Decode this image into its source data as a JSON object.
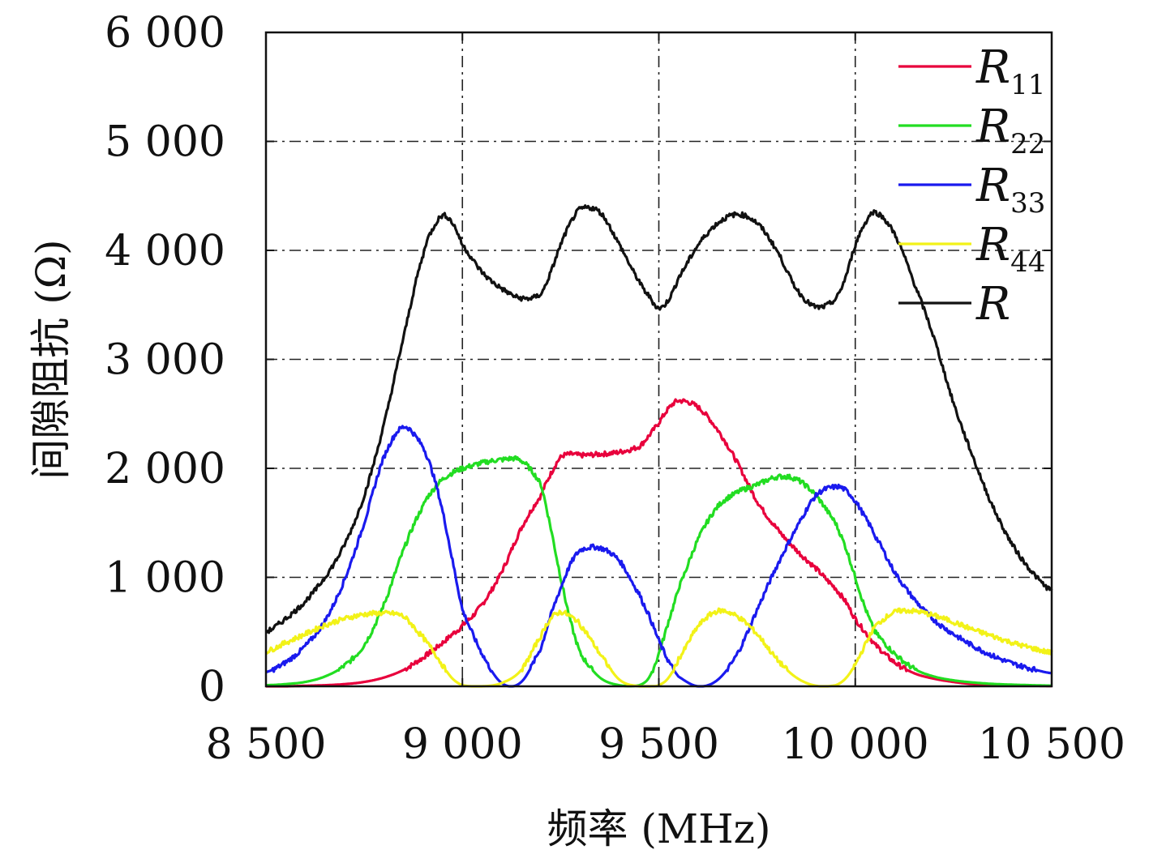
{
  "chart_data": {
    "type": "line",
    "xlabel": "频率 (MHz)",
    "ylabel": "间隙阻抗 (Ω)",
    "xlim": [
      8500,
      10500
    ],
    "ylim": [
      0,
      6000
    ],
    "x_ticks": [
      8500,
      9000,
      9500,
      10000,
      10500
    ],
    "x_tick_labels": [
      "8 500",
      "9 000",
      "9 500",
      "10 000",
      "10 500"
    ],
    "y_ticks": [
      0,
      1000,
      2000,
      3000,
      4000,
      5000,
      6000
    ],
    "y_tick_labels": [
      "0",
      "1 000",
      "2 000",
      "3 000",
      "4 000",
      "5 000",
      "6 000"
    ],
    "grid": true,
    "legend_position": "top-right",
    "x": [
      8500,
      8550,
      8600,
      8650,
      8700,
      8750,
      8800,
      8850,
      8900,
      8925,
      8950,
      8975,
      9000,
      9050,
      9100,
      9150,
      9200,
      9225,
      9250,
      9275,
      9300,
      9350,
      9400,
      9450,
      9475,
      9500,
      9525,
      9550,
      9600,
      9650,
      9700,
      9750,
      9800,
      9850,
      9900,
      9950,
      9975,
      10000,
      10025,
      10050,
      10100,
      10150,
      10200,
      10250,
      10300,
      10350,
      10400,
      10450,
      10500
    ],
    "series": [
      {
        "name": "R",
        "name_sub": "11",
        "color": "#e8003c",
        "values": [
          0,
          0,
          5,
          10,
          20,
          40,
          80,
          150,
          260,
          330,
          400,
          480,
          560,
          750,
          1050,
          1450,
          1750,
          1950,
          2100,
          2130,
          2120,
          2130,
          2150,
          2200,
          2300,
          2420,
          2550,
          2620,
          2560,
          2350,
          2050,
          1700,
          1450,
          1250,
          1080,
          900,
          780,
          620,
          500,
          380,
          220,
          120,
          70,
          40,
          20,
          12,
          8,
          5,
          3
        ]
      },
      {
        "name": "R",
        "name_sub": "22",
        "color": "#22dd22",
        "values": [
          10,
          20,
          40,
          90,
          190,
          380,
          750,
          1250,
          1650,
          1800,
          1900,
          1960,
          2000,
          2050,
          2080,
          2070,
          1850,
          1450,
          1000,
          600,
          300,
          80,
          10,
          10,
          80,
          300,
          600,
          900,
          1350,
          1650,
          1780,
          1850,
          1920,
          1900,
          1750,
          1500,
          1280,
          1000,
          720,
          500,
          300,
          160,
          90,
          55,
          35,
          22,
          15,
          10,
          6
        ]
      },
      {
        "name": "R",
        "name_sub": "33",
        "color": "#1a1aee",
        "values": [
          130,
          220,
          370,
          600,
          980,
          1500,
          2100,
          2380,
          2200,
          1950,
          1600,
          1150,
          700,
          300,
          30,
          40,
          350,
          650,
          900,
          1120,
          1250,
          1270,
          1150,
          850,
          650,
          420,
          230,
          90,
          0,
          60,
          300,
          700,
          1100,
          1450,
          1750,
          1830,
          1800,
          1700,
          1550,
          1380,
          1050,
          800,
          610,
          480,
          370,
          280,
          210,
          160,
          120
        ]
      },
      {
        "name": "R",
        "name_sub": "44",
        "color": "#f2f218",
        "values": [
          320,
          400,
          480,
          560,
          620,
          660,
          670,
          640,
          450,
          330,
          190,
          70,
          10,
          0,
          30,
          150,
          460,
          620,
          680,
          640,
          560,
          300,
          60,
          0,
          0,
          10,
          80,
          250,
          550,
          690,
          640,
          480,
          250,
          80,
          5,
          10,
          70,
          200,
          380,
          550,
          680,
          690,
          650,
          590,
          520,
          460,
          400,
          350,
          310
        ]
      },
      {
        "name": "R",
        "name_sub": "",
        "color": "#111111",
        "values": [
          500,
          620,
          780,
          1000,
          1300,
          1750,
          2400,
          3200,
          3950,
          4200,
          4320,
          4250,
          4050,
          3800,
          3650,
          3560,
          3600,
          3800,
          4050,
          4250,
          4380,
          4350,
          4050,
          3720,
          3580,
          3470,
          3550,
          3750,
          4050,
          4250,
          4330,
          4250,
          4000,
          3650,
          3480,
          3550,
          3750,
          4050,
          4250,
          4350,
          4150,
          3700,
          3200,
          2600,
          2100,
          1650,
          1300,
          1050,
          880
        ]
      }
    ]
  }
}
